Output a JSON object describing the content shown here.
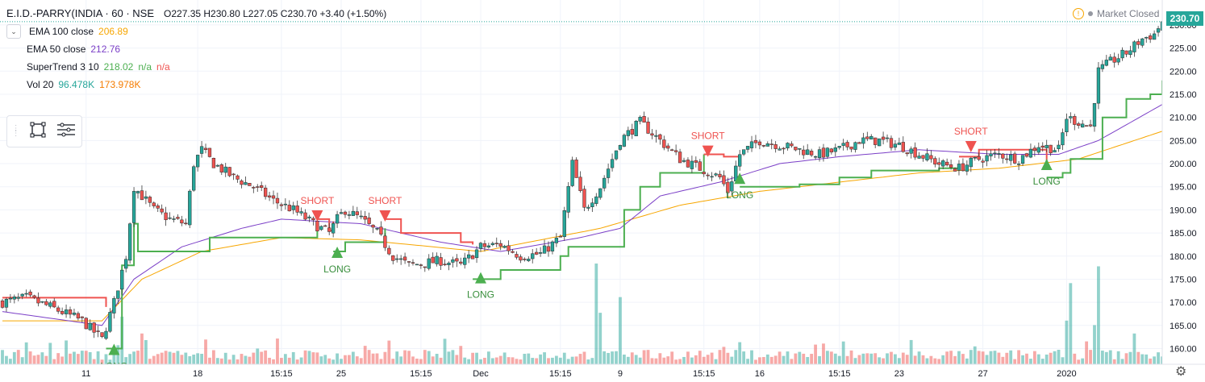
{
  "header": {
    "symbol": "E.I.D.-PARRY(INDIA · 60 · NSE",
    "ohlc": "O227.35  H230.80  L227.05  C230.70  +3.40 (+1.50%)"
  },
  "indicators": [
    {
      "name": "EMA 100 close",
      "value": "206.89",
      "color": "#f7a600"
    },
    {
      "name": "EMA 50 close",
      "value": "212.76",
      "color": "#7b3fc7"
    },
    {
      "name": "SuperTrend 3 10",
      "value": "218.02",
      "extra": "n/a",
      "extra2": "n/a",
      "color": "#4caf50",
      "color2": "#ef5350"
    },
    {
      "name": "Vol 20",
      "value": "96.478K",
      "extra": "173.978K",
      "color": "#26a69a",
      "color2": "#f57c00"
    }
  ],
  "status": {
    "market": "Market Closed"
  },
  "last_price": "230.70",
  "icons": {
    "gear": "gear-icon",
    "rect": "rectangle-tool-icon",
    "list": "list-tool-icon",
    "collapse": "chevron-down-icon",
    "status": "warning-icon"
  },
  "chart_data": {
    "type": "candlestick",
    "yticks": [
      "230.00",
      "225.00",
      "220.00",
      "215.00",
      "210.00",
      "205.00",
      "200.00",
      "195.00",
      "190.00",
      "185.00",
      "180.00",
      "175.00",
      "170.00",
      "165.00",
      "160.00"
    ],
    "ylim": [
      156.6,
      232.6
    ],
    "xticks": [
      {
        "label": "11",
        "i": 21
      },
      {
        "label": "18",
        "i": 49
      },
      {
        "label": "15:15",
        "i": 70
      },
      {
        "label": "25",
        "i": 85
      },
      {
        "label": "15:15",
        "i": 105
      },
      {
        "label": "Dec",
        "i": 120
      },
      {
        "label": "15:15",
        "i": 140
      },
      {
        "label": "9",
        "i": 155
      },
      {
        "label": "15:15",
        "i": 176
      },
      {
        "label": "16",
        "i": 190
      },
      {
        "label": "15:15",
        "i": 210
      },
      {
        "label": "23",
        "i": 225
      },
      {
        "label": "27",
        "i": 246
      },
      {
        "label": "2020",
        "i": 267
      }
    ],
    "anchors": [
      [
        0,
        170
      ],
      [
        6,
        171
      ],
      [
        12,
        169
      ],
      [
        16,
        167.5
      ],
      [
        20,
        166
      ],
      [
        25,
        162
      ],
      [
        28,
        170
      ],
      [
        31,
        180
      ],
      [
        33,
        195
      ],
      [
        35,
        193
      ],
      [
        38,
        190
      ],
      [
        42,
        188
      ],
      [
        46,
        187
      ],
      [
        48,
        200
      ],
      [
        50,
        203
      ],
      [
        53,
        200
      ],
      [
        58,
        197
      ],
      [
        63,
        195
      ],
      [
        68,
        192
      ],
      [
        73,
        190
      ],
      [
        78,
        187
      ],
      [
        82,
        185
      ],
      [
        84,
        188
      ],
      [
        86,
        190
      ],
      [
        90,
        188
      ],
      [
        94,
        185
      ],
      [
        98,
        180
      ],
      [
        102,
        178
      ],
      [
        106,
        178.5
      ],
      [
        110,
        179
      ],
      [
        115,
        178
      ],
      [
        120,
        182
      ],
      [
        125,
        182.5
      ],
      [
        130,
        180
      ],
      [
        135,
        180.5
      ],
      [
        140,
        184
      ],
      [
        143,
        200
      ],
      [
        146,
        190
      ],
      [
        150,
        195
      ],
      [
        155,
        205
      ],
      [
        160,
        209
      ],
      [
        165,
        205
      ],
      [
        170,
        201
      ],
      [
        175,
        199
      ],
      [
        180,
        197
      ],
      [
        182,
        194
      ],
      [
        185,
        202
      ],
      [
        190,
        205
      ],
      [
        195,
        204
      ],
      [
        200,
        203
      ],
      [
        205,
        202
      ],
      [
        210,
        203
      ],
      [
        215,
        205
      ],
      [
        220,
        205
      ],
      [
        225,
        204
      ],
      [
        230,
        202
      ],
      [
        235,
        200
      ],
      [
        240,
        199
      ],
      [
        245,
        201
      ],
      [
        250,
        202
      ],
      [
        255,
        201
      ],
      [
        260,
        204
      ],
      [
        265,
        203
      ],
      [
        267,
        210
      ],
      [
        270,
        209
      ],
      [
        273,
        208
      ],
      [
        275,
        220
      ],
      [
        278,
        222
      ],
      [
        282,
        224
      ],
      [
        286,
        227
      ],
      [
        289,
        228
      ],
      [
        291,
        230.7
      ]
    ],
    "volume_ylim": [
      0,
      180
    ],
    "volume_peaks": [
      [
        30,
        85
      ],
      [
        35,
        55
      ],
      [
        149,
        180
      ],
      [
        155,
        120
      ],
      [
        268,
        145
      ],
      [
        275,
        175
      ],
      [
        284,
        55
      ]
    ],
    "ema100": [
      [
        0,
        166
      ],
      [
        25,
        166
      ],
      [
        35,
        175
      ],
      [
        50,
        181
      ],
      [
        70,
        184
      ],
      [
        90,
        183.5
      ],
      [
        120,
        181
      ],
      [
        150,
        186
      ],
      [
        170,
        191
      ],
      [
        190,
        194
      ],
      [
        210,
        196
      ],
      [
        230,
        198
      ],
      [
        250,
        199
      ],
      [
        270,
        201
      ],
      [
        291,
        207
      ]
    ],
    "ema50": [
      [
        0,
        168
      ],
      [
        25,
        165
      ],
      [
        33,
        175
      ],
      [
        45,
        182
      ],
      [
        60,
        186
      ],
      [
        70,
        188
      ],
      [
        90,
        187
      ],
      [
        110,
        183
      ],
      [
        125,
        181
      ],
      [
        145,
        184
      ],
      [
        155,
        186
      ],
      [
        165,
        193
      ],
      [
        180,
        196
      ],
      [
        195,
        200
      ],
      [
        210,
        201.5
      ],
      [
        230,
        203
      ],
      [
        250,
        202
      ],
      [
        265,
        202
      ],
      [
        275,
        205
      ],
      [
        291,
        212.8
      ]
    ],
    "supertrend": [
      {
        "dir": "short",
        "points": [
          [
            0,
            171
          ],
          [
            24,
            171
          ],
          [
            26,
            169
          ]
        ]
      },
      {
        "dir": "long",
        "points": [
          [
            26,
            160
          ],
          [
            30,
            178
          ],
          [
            33,
            187
          ],
          [
            34,
            181
          ],
          [
            48,
            181
          ],
          [
            52,
            184
          ],
          [
            62,
            184
          ],
          [
            75,
            184
          ],
          [
            78,
            184
          ],
          [
            79,
            187.5
          ]
        ]
      },
      {
        "dir": "short",
        "points": [
          [
            79,
            188
          ],
          [
            82,
            185.5
          ],
          [
            83,
            187.5
          ]
        ]
      },
      {
        "dir": "long",
        "points": [
          [
            83,
            181
          ],
          [
            86,
            183
          ],
          [
            95,
            183
          ],
          [
            96,
            186
          ]
        ]
      },
      {
        "dir": "short",
        "points": [
          [
            96,
            188
          ],
          [
            100,
            185
          ],
          [
            107,
            185
          ],
          [
            115,
            183
          ],
          [
            118,
            182.5
          ]
        ]
      },
      {
        "dir": "long",
        "points": [
          [
            118,
            175
          ],
          [
            125,
            177
          ],
          [
            135,
            177
          ],
          [
            140,
            180
          ],
          [
            142,
            182
          ],
          [
            153,
            182
          ],
          [
            156,
            190
          ],
          [
            160,
            195
          ],
          [
            165,
            198
          ],
          [
            175,
            198
          ],
          [
            176,
            202
          ]
        ]
      },
      {
        "dir": "short",
        "points": [
          [
            176,
            202
          ],
          [
            181,
            201.5
          ],
          [
            185,
            201.5
          ]
        ]
      },
      {
        "dir": "long",
        "points": [
          [
            185,
            195
          ],
          [
            188,
            195
          ],
          [
            200,
            195.5
          ],
          [
            210,
            197
          ],
          [
            218,
            198.5
          ],
          [
            235,
            199
          ],
          [
            240,
            199.5
          ]
        ]
      },
      {
        "dir": "short",
        "points": [
          [
            240,
            201.5
          ],
          [
            245,
            203
          ],
          [
            260,
            203
          ],
          [
            262,
            200.5
          ]
        ]
      },
      {
        "dir": "long",
        "points": [
          [
            262,
            197
          ],
          [
            266,
            198
          ],
          [
            268,
            201
          ],
          [
            273,
            201
          ],
          [
            276,
            210
          ],
          [
            282,
            214
          ],
          [
            288,
            215
          ],
          [
            291,
            218
          ]
        ]
      }
    ],
    "signals": [
      {
        "type": "LONG",
        "i": 28,
        "price": 160
      },
      {
        "type": "SHORT",
        "i": 79,
        "price": 188.5
      },
      {
        "type": "LONG",
        "i": 84,
        "price": 181
      },
      {
        "type": "SHORT",
        "i": 96,
        "price": 188.5
      },
      {
        "type": "LONG",
        "i": 120,
        "price": 175.5
      },
      {
        "type": "SHORT",
        "i": 177,
        "price": 202.5
      },
      {
        "type": "LONG",
        "i": 185,
        "price": 197
      },
      {
        "type": "SHORT",
        "i": 243,
        "price": 203.5
      },
      {
        "type": "LONG",
        "i": 262,
        "price": 200
      }
    ],
    "bar_count": 292,
    "last_close": 230.7
  }
}
